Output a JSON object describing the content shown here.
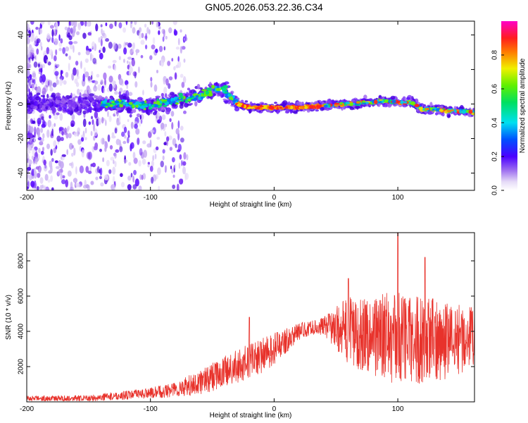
{
  "title": "GN05.2026.053.22.36.C34",
  "chart_data": [
    {
      "type": "heatmap",
      "xlabel": "Height of straight line (km)",
      "ylabel": "Frequency (Hz)",
      "xlim": [
        -200,
        162
      ],
      "ylim": [
        -50,
        48
      ],
      "xticks": [
        {
          "value": -200,
          "label": "-200"
        },
        {
          "value": -100,
          "label": "-100"
        },
        {
          "value": 0,
          "label": "0"
        },
        {
          "value": 100,
          "label": "100"
        }
      ],
      "yticks": [
        {
          "value": -40,
          "label": "-40"
        },
        {
          "value": -20,
          "label": "-20"
        },
        {
          "value": 0,
          "label": "0"
        },
        {
          "value": 20,
          "label": "20"
        },
        {
          "value": 40,
          "label": "40"
        }
      ],
      "colorbar": {
        "label": "Normalized spectral amplitude",
        "range": [
          0,
          1
        ],
        "ticks": [
          {
            "value": 0.0,
            "label": "0.0"
          },
          {
            "value": 0.2,
            "label": "0.2"
          },
          {
            "value": 0.4,
            "label": "0.4"
          },
          {
            "value": 0.6,
            "label": "0.6"
          },
          {
            "value": 0.8,
            "label": "0.8"
          }
        ]
      },
      "ridge": {
        "x": [
          -200,
          -150,
          -120,
          -100,
          -80,
          -60,
          -45,
          -40,
          -30,
          -20,
          0,
          20,
          40,
          60,
          80,
          90,
          100,
          110,
          120,
          130,
          140,
          150,
          162
        ],
        "y": [
          0,
          0,
          0,
          -1,
          2,
          5,
          9,
          8,
          0,
          -2,
          -2,
          -2,
          -1,
          0,
          1,
          2,
          1,
          1,
          -3,
          -3,
          -4,
          -4,
          -5
        ]
      }
    },
    {
      "type": "line",
      "xlabel": "Height of straight line (km)",
      "ylabel": "SNR (10 * v/v)",
      "xlim": [
        -200,
        162
      ],
      "ylim": [
        0,
        9600
      ],
      "xticks": [
        {
          "value": -200,
          "label": "-200"
        },
        {
          "value": -100,
          "label": "-100"
        },
        {
          "value": 0,
          "label": "0"
        },
        {
          "value": 100,
          "label": "100"
        }
      ],
      "yticks": [
        {
          "value": 2000,
          "label": "2000"
        },
        {
          "value": 4000,
          "label": "4000"
        },
        {
          "value": 6000,
          "label": "6000"
        },
        {
          "value": 8000,
          "label": "8000"
        }
      ],
      "series": [
        {
          "name": "SNR",
          "color": "#e8322b",
          "envelope": {
            "x": [
              -200,
              -150,
              -100,
              -80,
              -60,
              -40,
              -20,
              -10,
              0,
              10,
              20,
              30,
              40,
              50,
              60,
              70,
              80,
              90,
              100,
              110,
              120,
              130,
              140,
              150,
              162
            ],
            "base": [
              200,
              200,
              500,
              700,
              1100,
              1700,
              2300,
              2600,
              3000,
              3500,
              4000,
              4200,
              4300,
              4200,
              4000,
              3900,
              3800,
              3700,
              3600,
              3600,
              3500,
              3500,
              3500,
              3600,
              3600
            ],
            "spread": [
              150,
              180,
              300,
              450,
              700,
              900,
              1000,
              1000,
              900,
              700,
              500,
              400,
              500,
              1200,
              2000,
              2100,
              2300,
              2500,
              2700,
              2600,
              2500,
              2400,
              2200,
              2000,
              1800
            ]
          },
          "peaks": [
            {
              "x": -20,
              "y": 4800
            },
            {
              "x": 60,
              "y": 7000
            },
            {
              "x": 100,
              "y": 9600
            },
            {
              "x": 122,
              "y": 8200
            }
          ]
        }
      ]
    }
  ]
}
